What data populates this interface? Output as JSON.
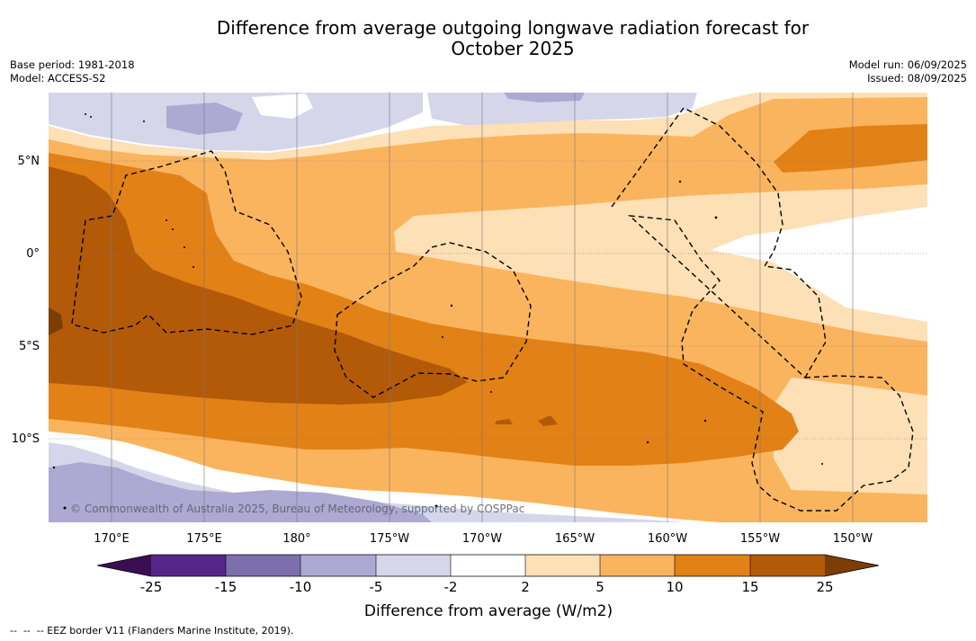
{
  "header": {
    "title": "Difference from average outgoing longwave radiation forecast for\nOctober 2025",
    "base_period": "Base period: 1981-2018",
    "model": "Model: ACCESS-S2",
    "model_run": "Model run: 06/09/2025",
    "issued": "Issued: 08/09/2025"
  },
  "map": {
    "copyright": "© Commonwealth of Australia 2025, Bureau of Meteorology, supported by COSPPac",
    "lon_ticks": [
      "170°E",
      "175°E",
      "180°",
      "175°W",
      "170°W",
      "165°W",
      "160°W",
      "155°W",
      "150°W"
    ],
    "lat_ticks": [
      "5°N",
      "0°",
      "5°S",
      "10°S"
    ]
  },
  "colorbar": {
    "title": "Difference from average (W/m2)",
    "ticks": [
      "-25",
      "-15",
      "-10",
      "-5",
      "-2",
      "2",
      "5",
      "10",
      "15",
      "25"
    ],
    "colors": {
      "under": "#3b0e54",
      "b1": "#56258a",
      "b2": "#7d6fad",
      "b3": "#aea9d2",
      "b4": "#d6d6ea",
      "b5": "#ffffff",
      "b6": "#fde0b5",
      "b7": "#fbb45e",
      "b8": "#e28116",
      "b9": "#b35a09",
      "over": "#7c3e06"
    }
  },
  "footer": {
    "legend": "--  --  -- EEZ border V11 (Flanders Marine Institute, 2019)."
  }
}
